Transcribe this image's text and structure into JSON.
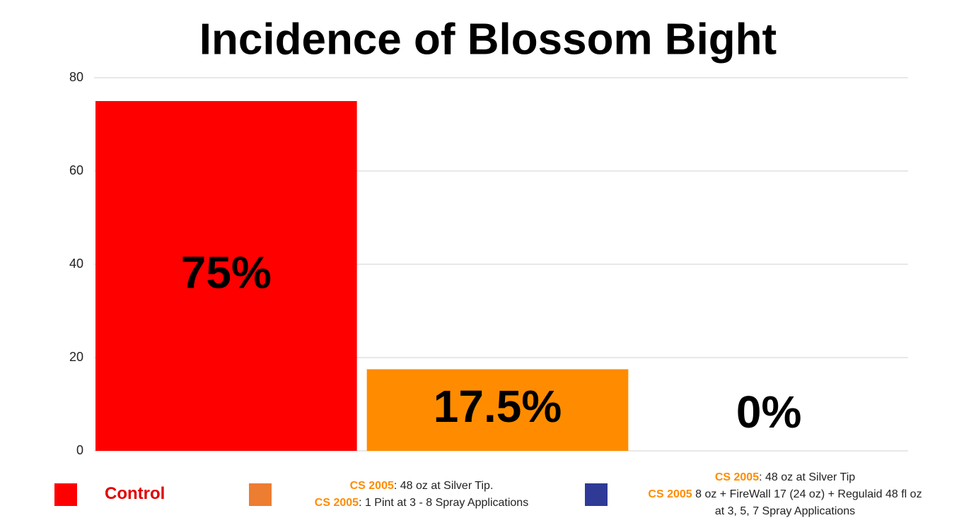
{
  "chart_data": {
    "type": "bar",
    "title": "Incidence of Blossom Bight",
    "categories": [
      "Control",
      "CS 2005 1 Pint",
      "CS 2005 + FireWall 17 + Regulaid"
    ],
    "values": [
      75,
      17.5,
      0
    ],
    "value_labels": [
      "75%",
      "17.5%",
      "0%"
    ],
    "colors": [
      "#ff0000",
      "#ff8c00",
      "#2e3a96"
    ],
    "ylim": [
      0,
      80
    ],
    "yticks": [
      0,
      20,
      40,
      60,
      80
    ],
    "grid": true,
    "legend": [
      {
        "color": "#ff0000",
        "lines": [
          [
            {
              "text": "Control",
              "color": "#e00000",
              "bold": true
            }
          ]
        ]
      },
      {
        "color": "#ed7d31",
        "lines": [
          [
            {
              "text": "CS 2005",
              "color": "#ff8c00",
              "bold": true
            },
            {
              "text": ": 48 oz at Silver Tip.",
              "color": "#222222",
              "bold": false
            }
          ],
          [
            {
              "text": "CS 2005",
              "color": "#ff8c00",
              "bold": true
            },
            {
              "text": ": 1 Pint  at 3 - 8 Spray Applications",
              "color": "#222222",
              "bold": false
            }
          ]
        ]
      },
      {
        "color": "#2e3a96",
        "lines": [
          [
            {
              "text": "CS 2005",
              "color": "#ff8c00",
              "bold": true
            },
            {
              "text": ": 48 oz at Silver Tip",
              "color": "#222222",
              "bold": false
            }
          ],
          [
            {
              "text": "CS 2005",
              "color": "#ff8c00",
              "bold": true
            },
            {
              "text": " 8 oz + FireWall 17 (24 oz) + Regulaid 48 fl oz",
              "color": "#222222",
              "bold": false
            }
          ],
          [
            {
              "text": "at 3, 5, 7 Spray Applications",
              "color": "#222222",
              "bold": false
            }
          ]
        ]
      }
    ]
  }
}
